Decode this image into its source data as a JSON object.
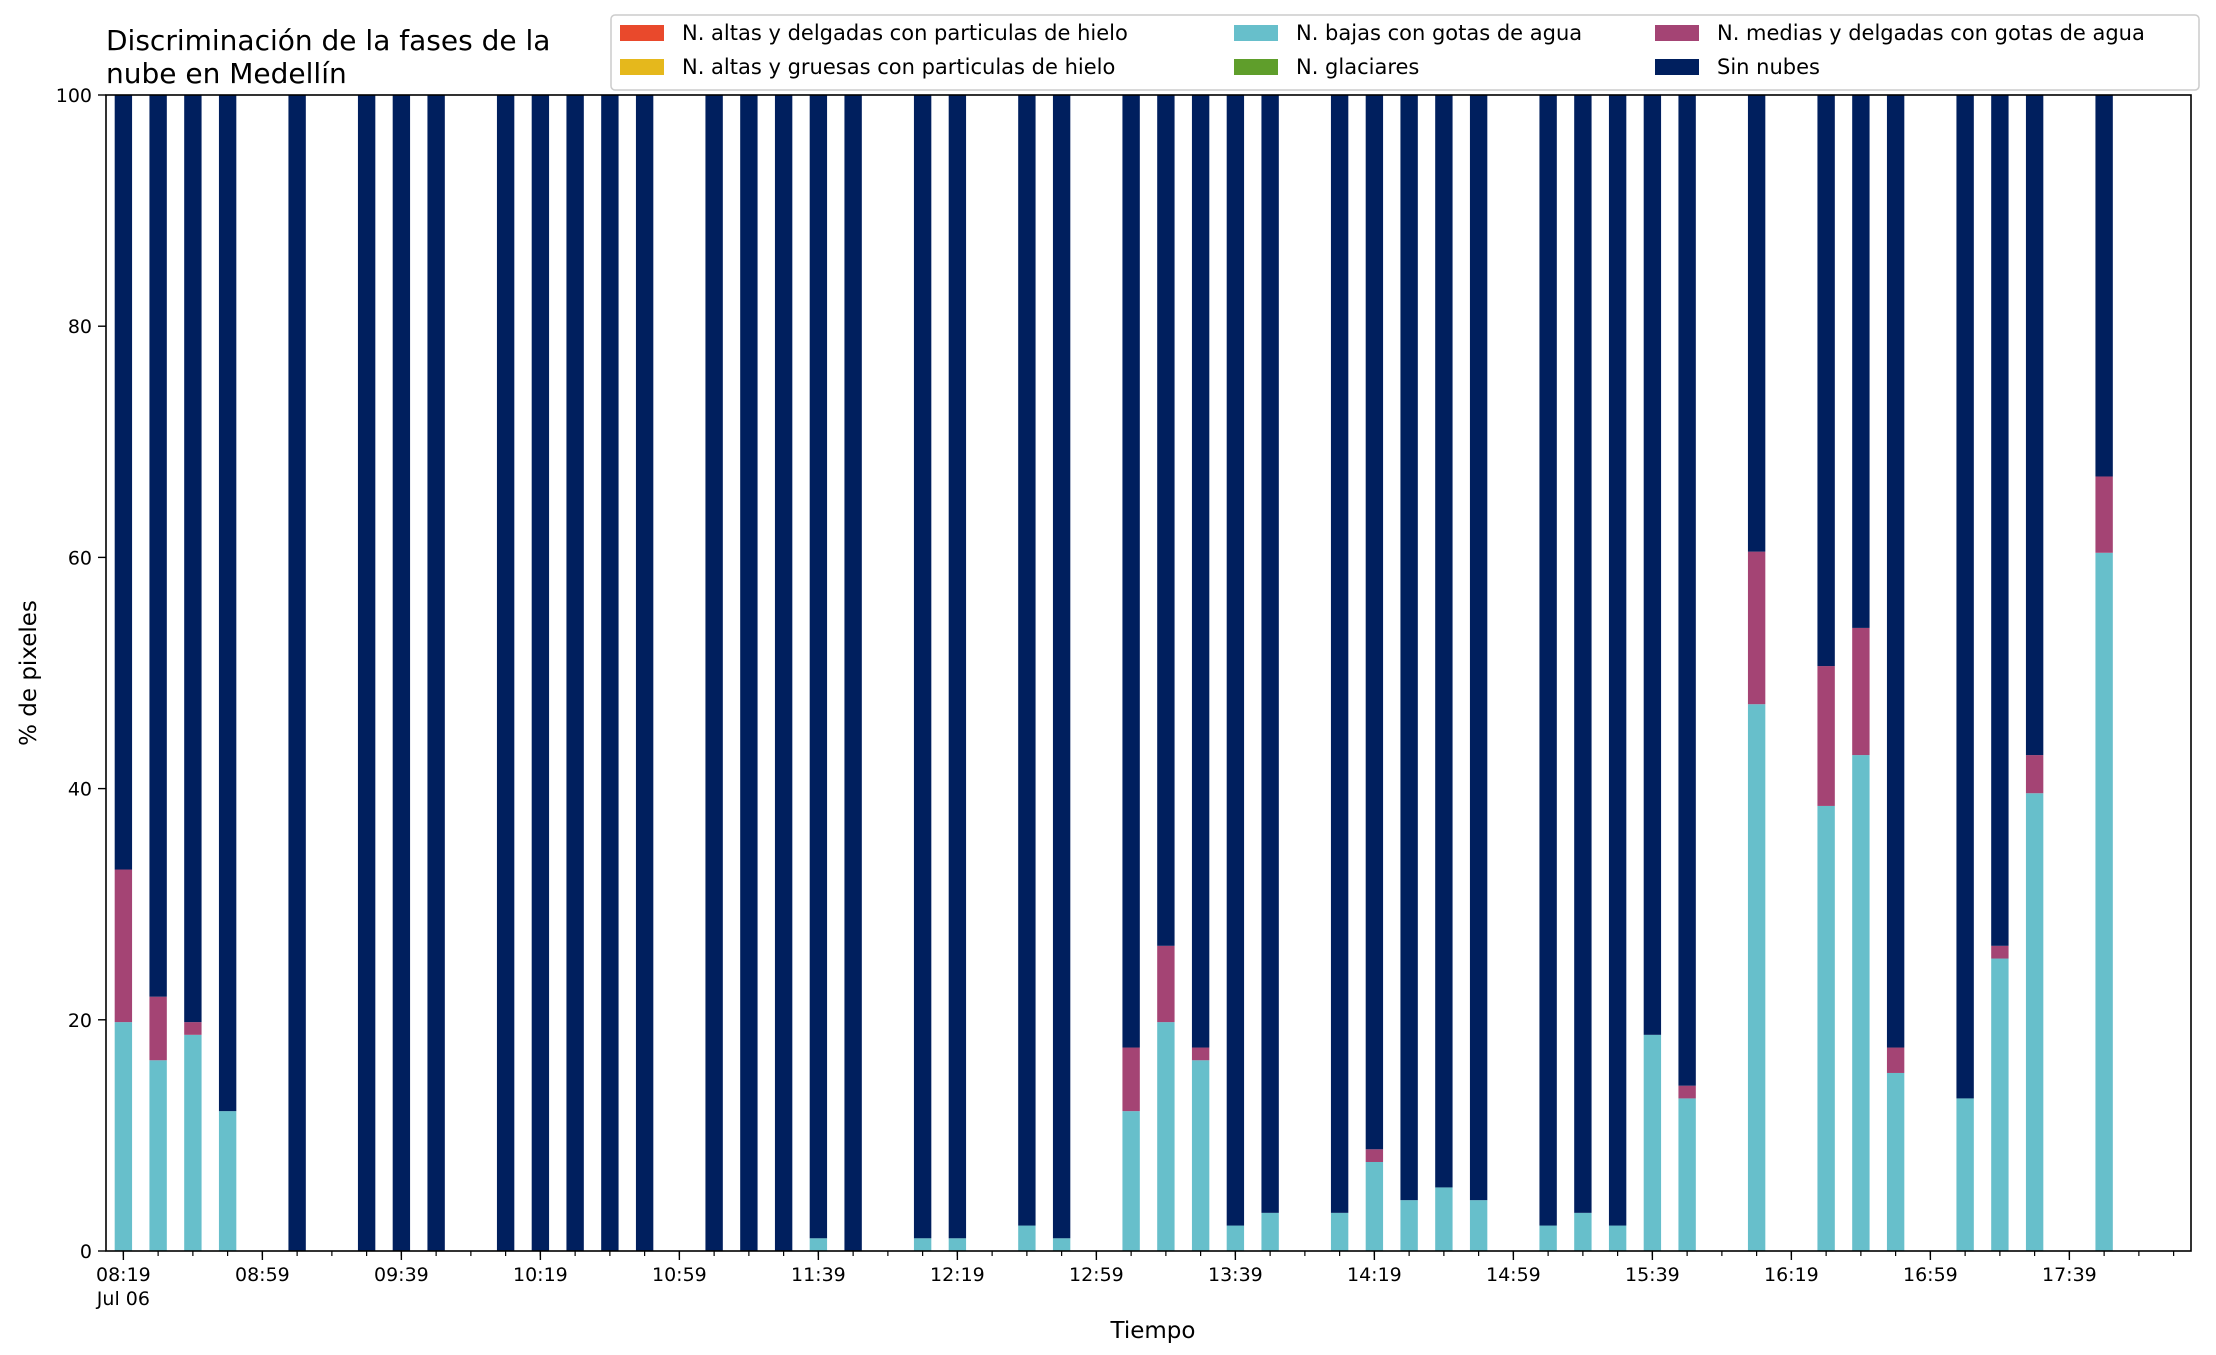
{
  "chart_data": {
    "type": "bar",
    "stacked": true,
    "title": "Discriminación de la fases de la nube en Medellín",
    "title_lines": [
      "Discriminación de la fases de la",
      "nube en Medellín"
    ],
    "xlabel": "Tiempo",
    "ylabel": "% de pixeles",
    "ylim": [
      0,
      100
    ],
    "yticks": [
      0,
      20,
      40,
      60,
      80,
      100
    ],
    "grid": false,
    "legend_position": "top-right",
    "x_start": "08:19",
    "x_end": "18:09",
    "x_step_minutes": 10,
    "x_tick_labels": [
      {
        "time": "08:19",
        "label": "08:19",
        "sublabel": "Jul 06"
      },
      {
        "time": "08:59",
        "label": "08:59"
      },
      {
        "time": "09:39",
        "label": "09:39"
      },
      {
        "time": "10:19",
        "label": "10:19"
      },
      {
        "time": "10:59",
        "label": "10:59"
      },
      {
        "time": "11:39",
        "label": "11:39"
      },
      {
        "time": "12:19",
        "label": "12:19"
      },
      {
        "time": "12:59",
        "label": "12:59"
      },
      {
        "time": "13:39",
        "label": "13:39"
      },
      {
        "time": "14:19",
        "label": "14:19"
      },
      {
        "time": "14:59",
        "label": "14:59"
      },
      {
        "time": "15:39",
        "label": "15:39"
      },
      {
        "time": "16:19",
        "label": "16:19"
      },
      {
        "time": "16:59",
        "label": "16:59"
      },
      {
        "time": "17:39",
        "label": "17:39"
      }
    ],
    "categories": [
      "08:19",
      "08:29",
      "08:39",
      "08:49",
      "09:09",
      "09:29",
      "09:39",
      "09:49",
      "10:09",
      "10:19",
      "10:29",
      "10:39",
      "10:49",
      "11:09",
      "11:19",
      "11:29",
      "11:39",
      "11:49",
      "12:09",
      "12:19",
      "12:39",
      "12:49",
      "13:09",
      "13:19",
      "13:29",
      "13:39",
      "13:49",
      "14:09",
      "14:19",
      "14:29",
      "14:39",
      "14:49",
      "15:09",
      "15:19",
      "15:29",
      "15:39",
      "15:49",
      "16:09",
      "16:29",
      "16:39",
      "16:49",
      "17:09",
      "17:19",
      "17:29",
      "17:49"
    ],
    "series": [
      {
        "name": "N. altas y delgadas con particulas de hielo",
        "color": "#e9492c",
        "values": [
          0,
          0,
          0,
          0,
          0,
          0,
          0,
          0,
          0,
          0,
          0,
          0,
          0,
          0,
          0,
          0,
          0,
          0,
          0,
          0,
          0,
          0,
          0,
          0,
          0,
          0,
          0,
          0,
          0,
          0,
          0,
          0,
          0,
          0,
          0,
          0,
          0,
          0,
          0,
          0,
          0,
          0,
          0,
          0,
          0
        ]
      },
      {
        "name": "N. altas y gruesas con particulas de hielo",
        "color": "#e5b81c",
        "values": [
          0,
          0,
          0,
          0,
          0,
          0,
          0,
          0,
          0,
          0,
          0,
          0,
          0,
          0,
          0,
          0,
          0,
          0,
          0,
          0,
          0,
          0,
          0,
          0,
          0,
          0,
          0,
          0,
          0,
          0,
          0,
          0,
          0,
          0,
          0,
          0,
          0,
          0,
          0,
          0,
          0,
          0,
          0,
          0,
          0
        ]
      },
      {
        "name": "N. bajas con gotas de agua",
        "color": "#67bfcb",
        "values": [
          19.8,
          16.5,
          18.7,
          12.1,
          0,
          0,
          0,
          0,
          0,
          0,
          0,
          0,
          0,
          0,
          0,
          0,
          1.1,
          0,
          1.1,
          1.1,
          2.2,
          1.1,
          12.1,
          19.8,
          16.5,
          2.2,
          3.3,
          3.3,
          7.7,
          4.4,
          5.5,
          4.4,
          2.2,
          3.3,
          2.2,
          18.7,
          13.2,
          47.3,
          38.5,
          42.9,
          15.4,
          13.2,
          25.3,
          39.6,
          60.4
        ]
      },
      {
        "name": "N. glaciares",
        "color": "#5f9e2b",
        "values": [
          0,
          0,
          0,
          0,
          0,
          0,
          0,
          0,
          0,
          0,
          0,
          0,
          0,
          0,
          0,
          0,
          0,
          0,
          0,
          0,
          0,
          0,
          0,
          0,
          0,
          0,
          0,
          0,
          0,
          0,
          0,
          0,
          0,
          0,
          0,
          0,
          0,
          0,
          0,
          0,
          0,
          0,
          0,
          0,
          0
        ]
      },
      {
        "name": "N. medias y delgadas con gotas de agua",
        "color": "#a44474",
        "values": [
          13.2,
          5.5,
          1.1,
          0,
          0,
          0,
          0,
          0,
          0,
          0,
          0,
          0,
          0,
          0,
          0,
          0,
          0,
          0,
          0,
          0,
          0,
          0,
          5.5,
          6.6,
          1.1,
          0,
          0,
          0,
          1.1,
          0,
          0,
          0,
          0,
          0,
          0,
          0,
          1.1,
          13.2,
          12.1,
          11.0,
          2.2,
          0,
          1.1,
          3.3,
          6.6
        ]
      },
      {
        "name": "Sin nubes",
        "color": "#001f5e",
        "values": [
          67.0,
          78.0,
          80.2,
          87.9,
          100,
          100,
          100,
          100,
          100,
          100,
          100,
          100,
          100,
          100,
          100,
          100,
          98.9,
          100,
          98.9,
          98.9,
          97.8,
          98.9,
          82.4,
          73.6,
          82.4,
          97.8,
          96.7,
          96.7,
          91.2,
          95.6,
          94.5,
          95.6,
          97.8,
          96.7,
          97.8,
          81.3,
          85.7,
          39.5,
          49.4,
          46.1,
          82.4,
          86.8,
          73.6,
          57.1,
          33.0
        ]
      }
    ]
  }
}
